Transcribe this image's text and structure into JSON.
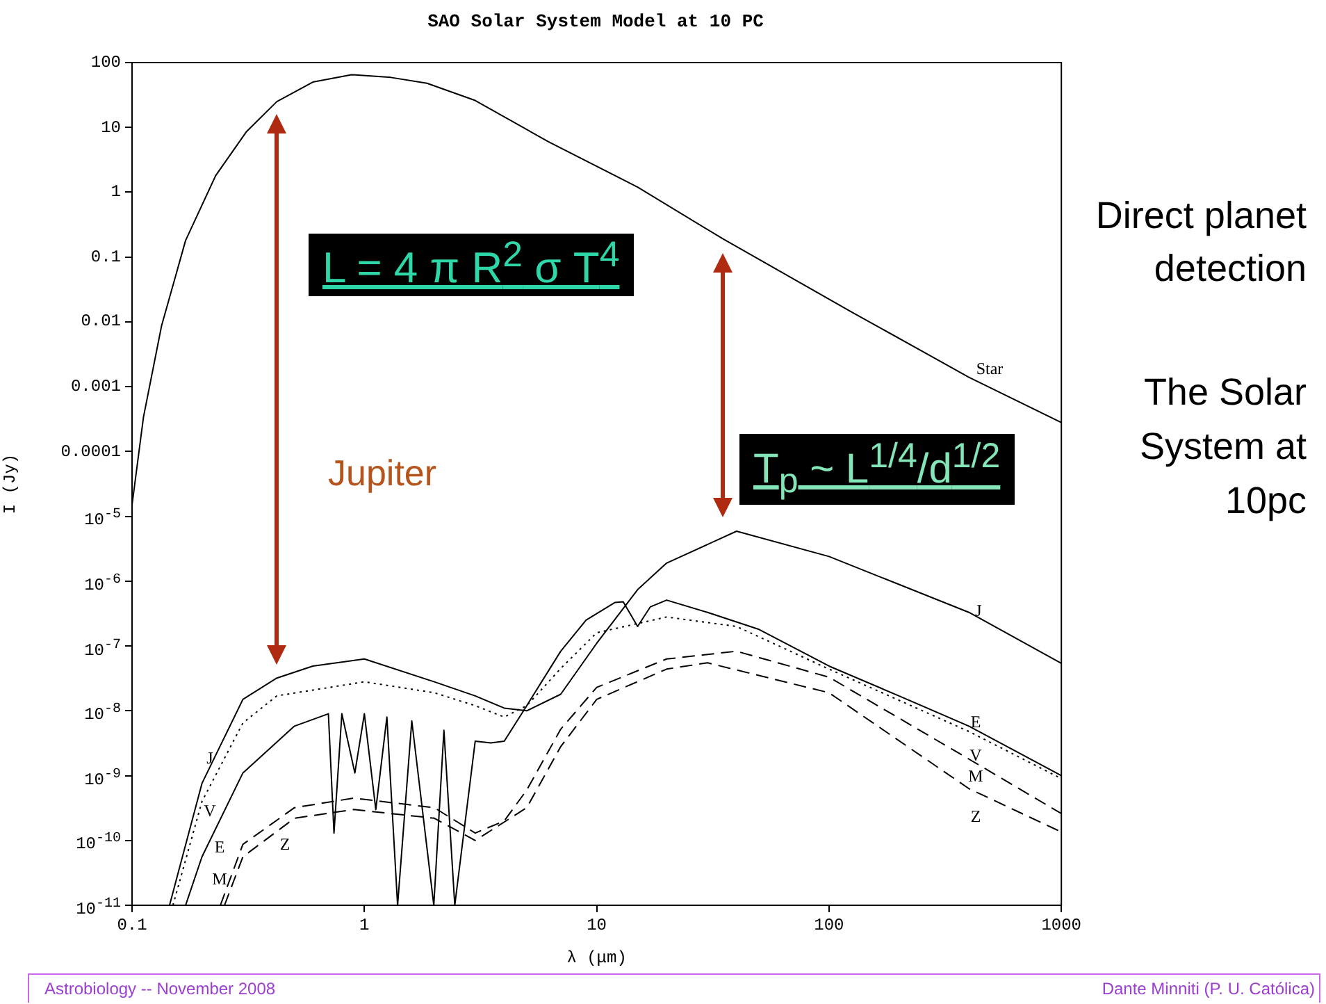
{
  "chart_data": {
    "type": "line",
    "title": "SAO Solar System Model at 10 PC",
    "xlabel": "λ (μm)",
    "ylabel": "I (Jy)",
    "log": "xy",
    "grid": false,
    "legend": false,
    "marker": "none",
    "xlim": [
      0.1,
      1000
    ],
    "xticks": [
      0.1,
      1,
      10,
      100,
      1000
    ],
    "ylim": [
      1e-11,
      100
    ],
    "yticks": [
      100,
      10,
      1,
      0.1,
      0.01,
      0.001,
      0.0001,
      {
        "value": 1e-05,
        "label": "10$^{-5}$"
      },
      {
        "value": 1e-06,
        "label": "10$^{-6}$"
      },
      {
        "value": 1e-07,
        "label": "10$^{-7}$"
      },
      {
        "value": 1e-08,
        "label": "10$^{-8}$"
      },
      {
        "value": 1e-09,
        "label": "10$^{-9}$"
      },
      {
        "value": 1e-10,
        "label": "10$^{-10}$"
      },
      {
        "value": 1e-11,
        "label": "10$^{-11}$"
      }
    ],
    "series": [
      {
        "name": "Star",
        "color": "#000000",
        "line_style": "solid",
        "x": [
          0.1,
          0.112,
          0.134,
          0.17,
          0.229,
          0.31,
          0.42,
          0.6,
          0.88,
          1.3,
          1.86,
          3,
          6.2,
          15,
          35,
          126,
          400,
          1000
        ],
        "values": [
          1.5e-05,
          0.00034,
          0.0087,
          0.18,
          1.8,
          8.5,
          25,
          50,
          65,
          59,
          48,
          26,
          6,
          1.2,
          0.19,
          0.014,
          0.0014,
          0.00028
        ]
      },
      {
        "name": "J",
        "color": "#000000",
        "line_style": "solid",
        "x": [
          0.145,
          0.2,
          0.3,
          0.42,
          0.6,
          1,
          2,
          3,
          4,
          5,
          7,
          10,
          15,
          20,
          40,
          100,
          400,
          1000
        ],
        "values": [
          1e-11,
          7.6e-10,
          1.5e-08,
          3.2e-08,
          4.9e-08,
          6.3e-08,
          2.8e-08,
          1.7e-08,
          1.1e-08,
          1e-08,
          1.8e-08,
          1.1e-07,
          7.4e-07,
          1.9e-06,
          5.9e-06,
          2.4e-06,
          3.3e-07,
          5.4e-08
        ]
      },
      {
        "name": "E",
        "color": "#000000",
        "line_style": "solid",
        "x": [
          0.17,
          0.2,
          0.3,
          0.5,
          0.7,
          0.74,
          0.8,
          0.91,
          1,
          1.12,
          1.25,
          1.39,
          1.6,
          1.99,
          2.2,
          2.45,
          3,
          3.5,
          4,
          5,
          7,
          9,
          12,
          13,
          15,
          17,
          20,
          30,
          50,
          100,
          200,
          400,
          1000
        ],
        "values": [
          1e-11,
          5.6e-11,
          1.1e-09,
          5.8e-09,
          9e-09,
          1.3e-10,
          9e-09,
          1.1e-09,
          9e-09,
          3e-10,
          8e-09,
          1e-11,
          7e-09,
          1e-11,
          5e-09,
          1e-11,
          3.4e-09,
          3.2e-09,
          3.4e-09,
          1.2e-08,
          8.3e-08,
          2.5e-07,
          4.7e-07,
          4.8e-07,
          2e-07,
          4e-07,
          5.1e-07,
          3.3e-07,
          1.8e-07,
          4.9e-08,
          1.7e-08,
          5.8e-09,
          1e-09
        ]
      },
      {
        "name": "V",
        "color": "#000000",
        "line_style": "dotted",
        "x": [
          0.15,
          0.2,
          0.3,
          0.42,
          1,
          2,
          3,
          4,
          5,
          7,
          10,
          20,
          40,
          100,
          400,
          1000
        ],
        "values": [
          1e-11,
          4e-10,
          6.5e-09,
          1.7e-08,
          2.8e-08,
          1.9e-08,
          1.2e-08,
          8e-09,
          1.2e-08,
          4.5e-08,
          1.6e-07,
          2.8e-07,
          2e-07,
          4.4e-08,
          4.8e-09,
          9e-10
        ]
      },
      {
        "name": "M",
        "color": "#000000",
        "line_style": "dashed",
        "x": [
          0.24,
          0.3,
          0.5,
          0.9,
          2,
          3,
          4,
          5,
          7,
          10,
          20,
          40,
          100,
          400,
          1000
        ],
        "values": [
          1e-11,
          8.7e-11,
          3.2e-10,
          4.5e-10,
          3.2e-10,
          1.3e-10,
          2e-10,
          6e-10,
          5.2e-09,
          2.3e-08,
          6.3e-08,
          8.3e-08,
          3.3e-08,
          1.8e-09,
          2.6e-10
        ]
      },
      {
        "name": "Z",
        "color": "#000000",
        "line_style": "dashed",
        "x": [
          0.25,
          0.3,
          0.5,
          0.9,
          2,
          3,
          5,
          7,
          10,
          20,
          30,
          100,
          400,
          1000
        ],
        "values": [
          1e-11,
          5.6e-11,
          2.2e-10,
          3e-10,
          2.2e-10,
          1e-10,
          3.2e-10,
          2.8e-09,
          1.5e-08,
          4.4e-08,
          5.5e-08,
          1.9e-08,
          6.3e-10,
          1.35e-10
        ]
      }
    ],
    "annotations": [
      "L = 4 π R$^{2}$ σ T$^{4}$",
      "T$_{p}$ ~ L$^{1/4}$/d$^{1/2}$",
      "Jupiter",
      "Direct planet detection",
      "The Solar System at 10pc",
      "Astrobiology -- November 2008",
      "Dante Minniti (P. U. Católica)"
    ]
  }
}
